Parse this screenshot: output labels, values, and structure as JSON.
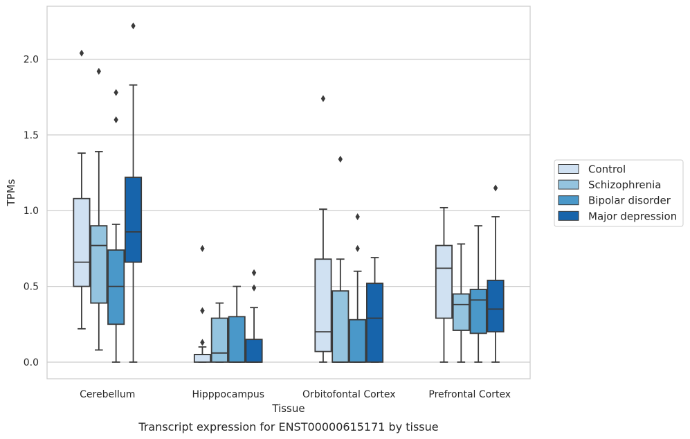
{
  "chart_data": {
    "type": "boxplot",
    "xlabel": "Tissue",
    "ylabel": "TPMs",
    "caption": "Transcript expression for ENST00000615171 by tissue",
    "ylim": [
      -0.11,
      2.35
    ],
    "yticks": [
      0.0,
      0.5,
      1.0,
      1.5,
      2.0
    ],
    "ytick_labels": [
      "0.0",
      "0.5",
      "1.0",
      "1.5",
      "2.0"
    ],
    "grid": "horizontal",
    "legend_placement": "right",
    "categories": [
      "Cerebellum",
      "Hipppocampus",
      "Orbitofontal Cortex",
      "Prefrontal Cortex"
    ],
    "series": [
      {
        "name": "Control",
        "color": "#d0e1f2",
        "boxes": [
          {
            "whislo": 0.22,
            "q1": 0.5,
            "med": 0.66,
            "q3": 1.08,
            "whishi": 1.38,
            "fliers": [
              2.04
            ]
          },
          {
            "whislo": 0.0,
            "q1": 0.0,
            "med": 0.05,
            "q3": 0.05,
            "whishi": 0.1,
            "fliers": [
              0.75,
              0.34,
              0.13
            ]
          },
          {
            "whislo": 0.0,
            "q1": 0.07,
            "med": 0.2,
            "q3": 0.68,
            "whishi": 1.01,
            "fliers": [
              1.74
            ]
          },
          {
            "whislo": 0.0,
            "q1": 0.29,
            "med": 0.62,
            "q3": 0.77,
            "whishi": 1.02,
            "fliers": []
          }
        ]
      },
      {
        "name": "Schizophrenia",
        "color": "#94c4df",
        "boxes": [
          {
            "whislo": 0.08,
            "q1": 0.39,
            "med": 0.77,
            "q3": 0.9,
            "whishi": 1.39,
            "fliers": [
              1.92
            ]
          },
          {
            "whislo": 0.0,
            "q1": 0.0,
            "med": 0.06,
            "q3": 0.29,
            "whishi": 0.39,
            "fliers": []
          },
          {
            "whislo": 0.0,
            "q1": 0.0,
            "med": 0.0,
            "q3": 0.47,
            "whishi": 0.68,
            "fliers": [
              1.34
            ]
          },
          {
            "whislo": 0.0,
            "q1": 0.21,
            "med": 0.38,
            "q3": 0.45,
            "whishi": 0.78,
            "fliers": []
          }
        ]
      },
      {
        "name": "Bipolar disorder",
        "color": "#4a98c9",
        "boxes": [
          {
            "whislo": 0.0,
            "q1": 0.25,
            "med": 0.5,
            "q3": 0.74,
            "whishi": 0.91,
            "fliers": [
              1.78,
              1.6
            ]
          },
          {
            "whislo": 0.0,
            "q1": 0.0,
            "med": 0.0,
            "q3": 0.3,
            "whishi": 0.5,
            "fliers": []
          },
          {
            "whislo": 0.0,
            "q1": 0.0,
            "med": 0.0,
            "q3": 0.28,
            "whishi": 0.6,
            "fliers": [
              0.96,
              0.75
            ]
          },
          {
            "whislo": 0.0,
            "q1": 0.19,
            "med": 0.41,
            "q3": 0.48,
            "whishi": 0.9,
            "fliers": []
          }
        ]
      },
      {
        "name": "Major depression",
        "color": "#1764ab",
        "boxes": [
          {
            "whislo": 0.0,
            "q1": 0.66,
            "med": 0.86,
            "q3": 1.22,
            "whishi": 1.83,
            "fliers": [
              2.22
            ]
          },
          {
            "whislo": 0.0,
            "q1": 0.0,
            "med": 0.0,
            "q3": 0.15,
            "whishi": 0.36,
            "fliers": [
              0.59,
              0.49
            ]
          },
          {
            "whislo": 0.0,
            "q1": 0.0,
            "med": 0.29,
            "q3": 0.52,
            "whishi": 0.69,
            "fliers": []
          },
          {
            "whislo": 0.0,
            "q1": 0.2,
            "med": 0.35,
            "q3": 0.54,
            "whishi": 0.96,
            "fliers": [
              1.15
            ]
          }
        ]
      }
    ]
  }
}
